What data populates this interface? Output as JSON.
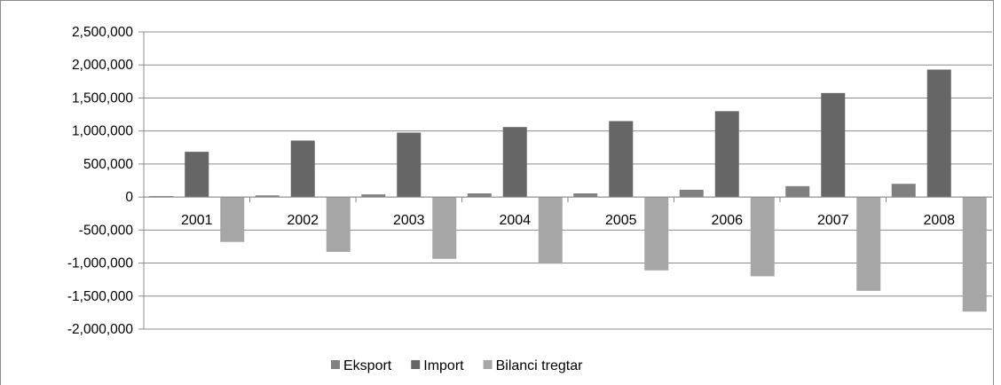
{
  "chart_data": {
    "type": "bar",
    "title": "",
    "xlabel": "",
    "ylabel": "",
    "categories": [
      "2001",
      "2002",
      "2003",
      "2004",
      "2005",
      "2006",
      "2007",
      "2008"
    ],
    "series": [
      {
        "name": "Eksport",
        "color": "#808080",
        "values": [
          15000,
          25000,
          40000,
          55000,
          55000,
          110000,
          165000,
          200000
        ]
      },
      {
        "name": "Import",
        "color": "#666666",
        "values": [
          685000,
          855000,
          975000,
          1060000,
          1150000,
          1300000,
          1575000,
          1930000
        ]
      },
      {
        "name": "Bilanci tregtar",
        "color": "#a6a6a6",
        "values": [
          -680000,
          -830000,
          -935000,
          -1010000,
          -1110000,
          -1200000,
          -1420000,
          -1735000
        ]
      }
    ],
    "ylim": [
      -2000000,
      2500000
    ],
    "yticks": [
      2500000,
      2000000,
      1500000,
      1000000,
      500000,
      0,
      -500000,
      -1000000,
      -1500000,
      -2000000
    ],
    "ytick_labels": [
      "2,500,000",
      "2,000,000",
      "1,500,000",
      "1,000,000",
      "500,000",
      "0",
      "-500,000",
      "-1,000,000",
      "-1,500,000",
      "-2,000,000"
    ],
    "grid": true,
    "legend_position": "bottom"
  }
}
